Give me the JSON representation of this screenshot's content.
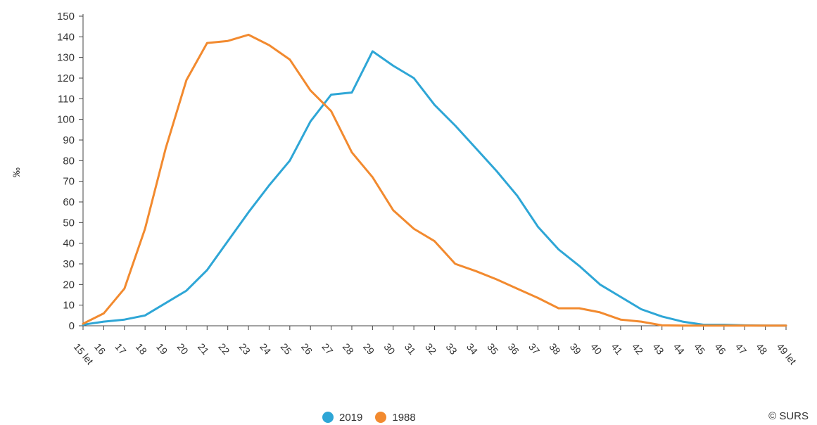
{
  "chart_data": {
    "type": "line",
    "ylabel": "‰",
    "ylim": [
      0,
      150
    ],
    "yticks": [
      0,
      10,
      20,
      30,
      40,
      50,
      60,
      70,
      80,
      90,
      100,
      110,
      120,
      130,
      140,
      150
    ],
    "categories": [
      "15 let",
      "16",
      "17",
      "18",
      "19",
      "20",
      "21",
      "22",
      "23",
      "24",
      "25",
      "26",
      "27",
      "28",
      "29",
      "30",
      "31",
      "32",
      "33",
      "34",
      "35",
      "36",
      "37",
      "38",
      "39",
      "40",
      "41",
      "42",
      "43",
      "44",
      "45",
      "46",
      "47",
      "48",
      "49 let"
    ],
    "series": [
      {
        "name": "2019",
        "color": "#2ea6d6",
        "values": [
          0.5,
          2,
          3,
          5,
          11,
          17,
          27,
          41,
          55,
          68,
          80,
          99,
          112,
          113,
          133,
          126,
          120,
          107,
          97,
          86,
          75,
          63,
          48,
          37,
          29,
          20,
          14,
          8,
          4.5,
          2,
          0.5,
          0.5,
          0.2,
          0.1,
          0.1
        ]
      },
      {
        "name": "1988",
        "color": "#f28a2f",
        "values": [
          1,
          6,
          18,
          47,
          86,
          119,
          137,
          138,
          141,
          136,
          129,
          114,
          104,
          84,
          72,
          56,
          47,
          41,
          30,
          26.5,
          22.5,
          18,
          13.5,
          8.5,
          8.5,
          6.5,
          3,
          2,
          0.2,
          0.1,
          0.1,
          0.1,
          0.1,
          0.1,
          0.1
        ]
      }
    ],
    "grid": false,
    "legend_position": "bottom"
  },
  "credit": "© SURS"
}
